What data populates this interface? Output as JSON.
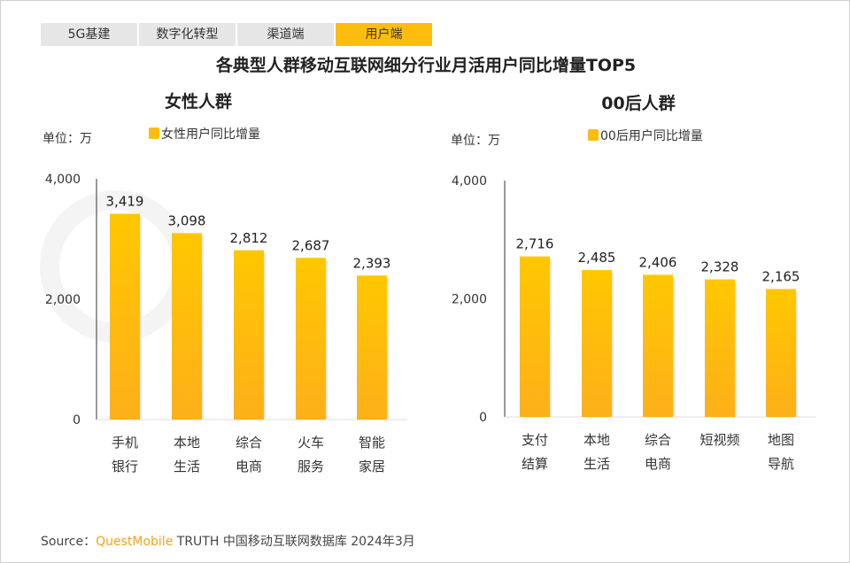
{
  "tabs": [
    {
      "label": "5G基建"
    },
    {
      "label": "数字化转型"
    },
    {
      "label": "渠道端"
    },
    {
      "label": "用户端"
    }
  ],
  "active_tab": 3,
  "title": "各典型人群移动互联网细分行业月活用户同比增量TOP5",
  "watermark": "QUESTMOBILE",
  "colors": {
    "bar_top": "#ffc700",
    "bar_bottom": "#fdb01a",
    "accent": "#fdbd10"
  },
  "chart_data": [
    {
      "type": "bar",
      "title": "女性人群",
      "unit_label": "单位：万",
      "legend": "女性用户同比增量",
      "legend_position": "top",
      "categories": [
        [
          "手机",
          "银行"
        ],
        [
          "本地",
          "生活"
        ],
        [
          "综合",
          "电商"
        ],
        [
          "火车",
          "服务"
        ],
        [
          "智能",
          "家居"
        ]
      ],
      "values": [
        3419,
        3098,
        2812,
        2687,
        2393
      ],
      "value_labels": [
        "3,419",
        "3,098",
        "2,812",
        "2,687",
        "2,393"
      ],
      "yticks": [
        0,
        2000,
        4000
      ],
      "ytick_labels": [
        "0",
        "2,000",
        "4,000"
      ],
      "ylim": [
        0,
        4000
      ]
    },
    {
      "type": "bar",
      "title": "00后人群",
      "unit_label": "单位：万",
      "legend": "00后用户同比增量",
      "legend_position": "top",
      "categories": [
        [
          "支付",
          "结算"
        ],
        [
          "本地",
          "生活"
        ],
        [
          "综合",
          "电商"
        ],
        [
          "短视频"
        ],
        [
          "地图",
          "导航"
        ]
      ],
      "values": [
        2716,
        2485,
        2406,
        2328,
        2165
      ],
      "value_labels": [
        "2,716",
        "2,485",
        "2,406",
        "2,328",
        "2,165"
      ],
      "yticks": [
        0,
        2000,
        4000
      ],
      "ytick_labels": [
        "0",
        "2,000",
        "4,000"
      ],
      "ylim": [
        0,
        4000
      ]
    }
  ],
  "source": {
    "prefix": "Source：",
    "brand": "QuestMobile",
    "rest": " TRUTH 中国移动互联网数据库 2024年3月"
  }
}
